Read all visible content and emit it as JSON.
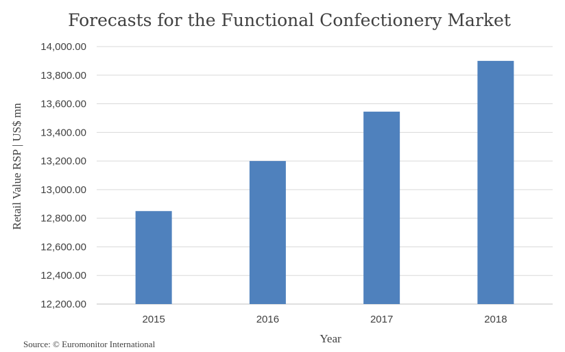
{
  "chart_data": {
    "type": "bar",
    "title": "Forecasts for the Functional Confectionery Market",
    "xlabel": "Year",
    "ylabel": "Retail Value RSP | US$ mn",
    "categories": [
      "2015",
      "2016",
      "2017",
      "2018"
    ],
    "values": [
      12850,
      13200,
      13545,
      13900
    ],
    "ylim": [
      12200,
      14000
    ],
    "yticks": [
      12200,
      12400,
      12600,
      12800,
      13000,
      13200,
      13400,
      13600,
      13800,
      14000
    ],
    "ytick_labels": [
      "12,200.00",
      "12,400.00",
      "12,600.00",
      "12,800.00",
      "13,000.00",
      "13,200.00",
      "13,400.00",
      "13,600.00",
      "13,800.00",
      "14,000.00"
    ],
    "grid": true,
    "legend": "none",
    "bar_color": "#4f81bd"
  },
  "source": "Source: © Euromonitor International"
}
